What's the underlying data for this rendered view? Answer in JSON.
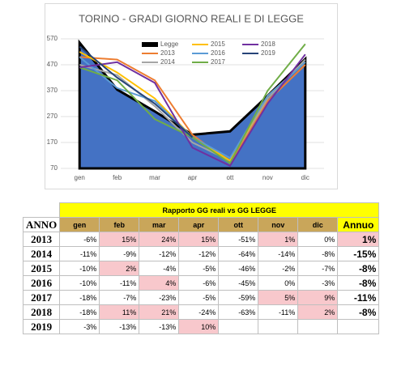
{
  "chart_data": {
    "type": "area-line",
    "title": "TORINO - GRADI GIORNO REALI E DI LEGGE",
    "categories": [
      "gen",
      "feb",
      "mar",
      "apr",
      "ott",
      "nov",
      "dic"
    ],
    "ylim": [
      70,
      570
    ],
    "yticks": [
      70,
      170,
      270,
      370,
      470,
      570
    ],
    "grid": true,
    "series": [
      {
        "name": "Legge",
        "color": "#4472c4",
        "values": [
          555,
          374,
          290,
          200,
          213,
          350,
          492
        ]
      },
      {
        "name": "2013",
        "color": "#ed7d31",
        "values": [
          500,
          490,
          410,
          200,
          90,
          330,
          470
        ]
      },
      {
        "name": "2014",
        "color": "#a5a5a5",
        "values": [
          470,
          430,
          310,
          170,
          100,
          340,
          490
        ]
      },
      {
        "name": "2015",
        "color": "#ffc000",
        "values": [
          520,
          440,
          340,
          190,
          100,
          350,
          480
        ]
      },
      {
        "name": "2016",
        "color": "#5b9bd5",
        "values": [
          500,
          380,
          330,
          190,
          110,
          350,
          480
        ]
      },
      {
        "name": "2017",
        "color": "#70ad47",
        "values": [
          460,
          410,
          260,
          190,
          90,
          370,
          550
        ]
      },
      {
        "name": "2018",
        "color": "#7030a0",
        "values": [
          460,
          480,
          400,
          150,
          80,
          320,
          510
        ]
      },
      {
        "name": "2019",
        "color": "#264478",
        "values": [
          540,
          420,
          320,
          190,
          null,
          null,
          null
        ]
      }
    ]
  },
  "table": {
    "title": "Rapporto GG reali  vs GG LEGGE",
    "columns": [
      "ANNO",
      "gen",
      "feb",
      "mar",
      "apr",
      "ott",
      "nov",
      "dic",
      "Annuo"
    ],
    "rows": [
      [
        "2013",
        "-6%",
        "15%",
        "24%",
        "15%",
        "-51%",
        "1%",
        "0%",
        "1%"
      ],
      [
        "2014",
        "-11%",
        "-9%",
        "-12%",
        "-12%",
        "-64%",
        "-14%",
        "-8%",
        "-15%"
      ],
      [
        "2015",
        "-10%",
        "2%",
        "-4%",
        "-5%",
        "-46%",
        "-2%",
        "-7%",
        "-8%"
      ],
      [
        "2016",
        "-10%",
        "-11%",
        "4%",
        "-6%",
        "-45%",
        "0%",
        "-3%",
        "-8%"
      ],
      [
        "2017",
        "-18%",
        "-7%",
        "-23%",
        "-5%",
        "-59%",
        "5%",
        "9%",
        "-11%"
      ],
      [
        "2018",
        "-18%",
        "11%",
        "21%",
        "-24%",
        "-63%",
        "-11%",
        "2%",
        "-8%"
      ],
      [
        "2019",
        "-3%",
        "-13%",
        "-13%",
        "10%"
      ]
    ],
    "highlight": [
      [
        2,
        3,
        4,
        6,
        8
      ],
      [],
      [
        2
      ],
      [
        3
      ],
      [
        6,
        7
      ],
      [
        2,
        3,
        7
      ],
      [
        4
      ]
    ]
  }
}
